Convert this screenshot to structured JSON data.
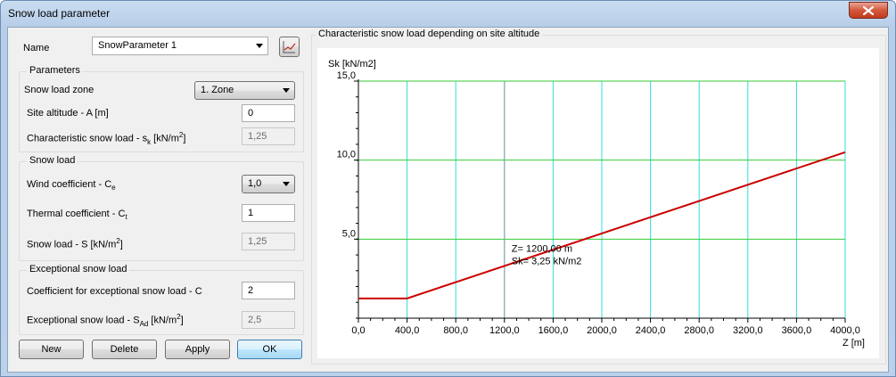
{
  "window": {
    "title": "Snow load parameter"
  },
  "name_row": {
    "label": "Name",
    "value": "SnowParameter 1"
  },
  "parameters": {
    "title": "Parameters",
    "zone_label": "Snow load zone",
    "zone_value": "1. Zone",
    "altitude_label": "Site altitude - A [m]",
    "altitude_value": "0",
    "char_load_label_pre": "Characteristic snow load - s",
    "char_load_label_sub": "k",
    "char_load_label_post": " [kN/m",
    "char_load_label_sup": "2",
    "char_load_label_end": "]",
    "char_load_value": "1,25"
  },
  "snow_load": {
    "title": "Snow load",
    "wind_label_pre": "Wind coefficient - C",
    "wind_label_sub": "e",
    "wind_value": "1,0",
    "thermal_label_pre": "Thermal coefficient - C",
    "thermal_label_sub": "t",
    "thermal_value": "1",
    "load_label_pre": "Snow load - S [kN/m",
    "load_label_sup": "2",
    "load_label_end": "]",
    "load_value": "1,25"
  },
  "exceptional": {
    "title": "Exceptional snow load",
    "coef_label": "Coefficient for exceptional snow load - C",
    "coef_value": "2",
    "load_label_pre": "Exceptional snow load - S",
    "load_label_sub": "Ad",
    "load_label_post": " [kN/m",
    "load_label_sup": "2",
    "load_label_end": "]",
    "load_value": "2,5"
  },
  "buttons": {
    "new": "New",
    "delete": "Delete",
    "apply": "Apply",
    "ok": "OK"
  },
  "chart_panel_title": "Characteristic snow load depending on site altitude",
  "chart_data": {
    "type": "line",
    "ylabel": "Sk [kN/m2]",
    "xlabel": "Z [m]",
    "xlim": [
      0,
      4000
    ],
    "ylim": [
      0,
      15
    ],
    "x_ticks": [
      "0,0",
      "400,0",
      "800,0",
      "1200,0",
      "1600,0",
      "2000,0",
      "2400,0",
      "2800,0",
      "3200,0",
      "3600,0",
      "4000,0"
    ],
    "y_ticks": [
      {
        "value": 5,
        "label": "5,0"
      },
      {
        "value": 10,
        "label": "10,0"
      },
      {
        "value": 15,
        "label": "15,0"
      }
    ],
    "grid": true,
    "series": [
      {
        "x": [
          0,
          400,
          4000
        ],
        "y": [
          1.25,
          1.25,
          10.5
        ],
        "color": "#cc0000"
      }
    ],
    "annotation": {
      "x": 1200,
      "y": 3.25,
      "line1": "Z= 1200,00 m",
      "line2": "Sk= 3,25 kN/m2"
    }
  }
}
